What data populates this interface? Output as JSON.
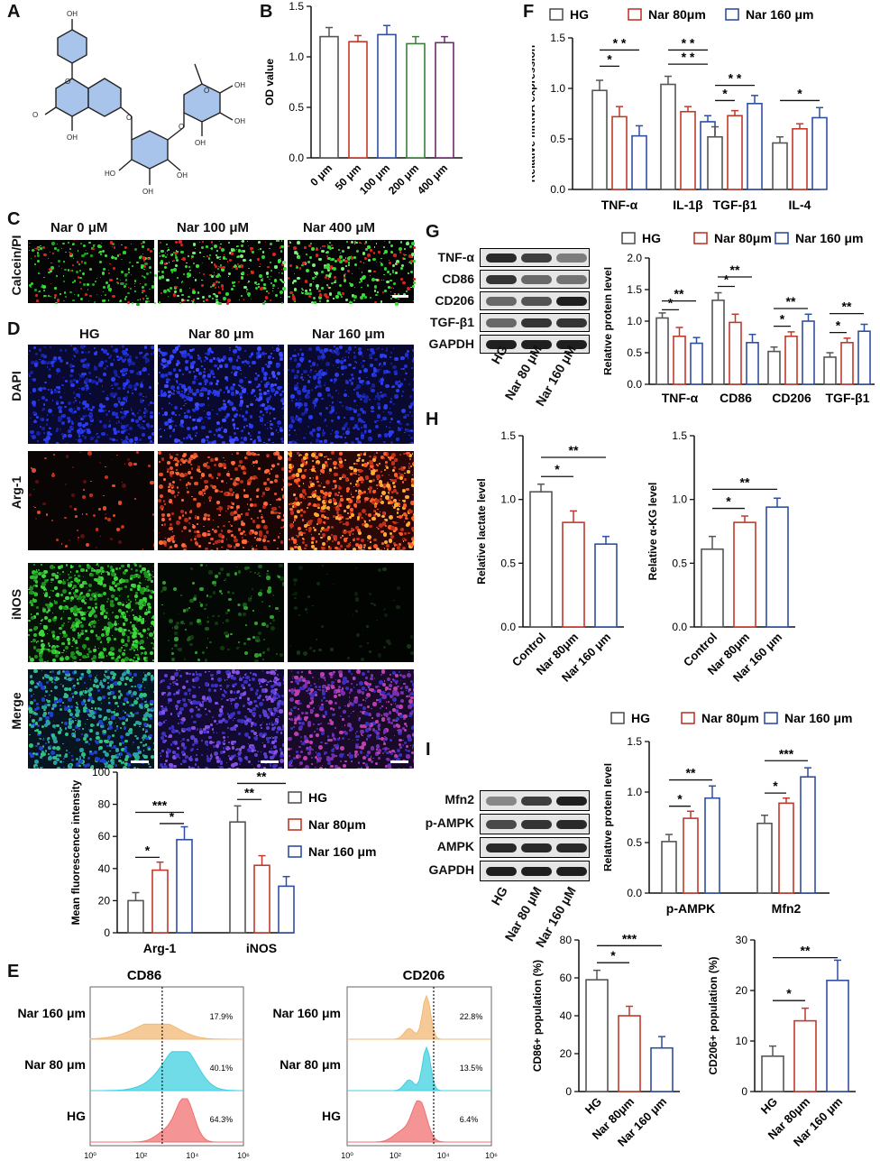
{
  "panels": {
    "A": "A",
    "B": "B",
    "C": "C",
    "D": "D",
    "E": "E",
    "F": "F",
    "G": "G",
    "H": "H",
    "I": "I"
  },
  "colors": {
    "hg": "#555555",
    "nar80": "#c0392b",
    "nar160": "#2e4fa0",
    "bar_fill": "#ffffff"
  },
  "panelB": {
    "ylabel": "OD value",
    "categories": [
      "0 μm",
      "50 μm",
      "100 μm",
      "200 μm",
      "400 μm"
    ],
    "yticks": [
      "0.0",
      "0.5",
      "1.0",
      "1.5"
    ]
  },
  "panelC": {
    "row_label": "Calcein/PI",
    "columns": [
      "Nar 0 μM",
      "Nar 100 μM",
      "Nar 400 μM"
    ]
  },
  "panelD": {
    "columns": [
      "HG",
      "Nar 80 μm",
      "Nar 160 μm"
    ],
    "rows": [
      "DAPI",
      "Arg-1",
      "iNOS",
      "Merge"
    ],
    "chart_ylabel": "Mean fluorescence intensity",
    "legend": [
      "HG",
      "Nar 80μm",
      "Nar 160 μm"
    ],
    "yticks": [
      "0",
      "20",
      "40",
      "60",
      "80",
      "100"
    ],
    "groups": [
      "Arg-1",
      "iNOS"
    ],
    "sig": [
      "*",
      "***",
      "*",
      "**",
      "**"
    ]
  },
  "panelE": {
    "cd86_title": "CD86",
    "cd206_title": "CD206",
    "rows": [
      "Nar 160 μm",
      "Nar 80 μm",
      "HG"
    ],
    "cd86_pct": [
      "17.9%",
      "40.1%",
      "64.3%"
    ],
    "cd206_pct": [
      "22.8%",
      "13.5%",
      "6.4%"
    ],
    "xticks": [
      "10⁰",
      "10²",
      "10⁴",
      "10⁶"
    ]
  },
  "panelF": {
    "ylabel": "Relative mRNA expression",
    "legend": [
      "HG",
      "Nar 80μm",
      "Nar 160 μm"
    ],
    "groups": [
      "TNF-α",
      "IL-1β",
      "TGF-β1",
      "IL-4"
    ],
    "yticks": [
      "0.0",
      "0.5",
      "1.0",
      "1.5"
    ],
    "sig": [
      "*",
      "* *",
      "* *",
      "* *",
      "*",
      "* *",
      "*"
    ]
  },
  "panelG": {
    "blots": [
      "TNF-α",
      "CD86",
      "CD206",
      "TGF-β1",
      "GAPDH"
    ],
    "lanes": [
      "HG",
      "Nar 80 μM",
      "Nar 160 μM"
    ],
    "ylabel": "Relative protein level",
    "legend": [
      "HG",
      "Nar 80μm",
      "Nar 160 μm"
    ],
    "groups": [
      "TNF-α",
      "CD86",
      "CD206",
      "TGF-β1"
    ],
    "yticks": [
      "0.0",
      "0.5",
      "1.0",
      "1.5",
      "2.0"
    ],
    "sig": [
      "*",
      "**",
      "*",
      "**",
      "*",
      "**",
      "*",
      "**"
    ]
  },
  "panelH": {
    "left_ylabel": "Relative lactate level",
    "right_ylabel": "Relative α-KG level",
    "categories": [
      "Control",
      "Nar 80μm",
      "Nar 160 μm"
    ],
    "yticks": [
      "0.0",
      "0.5",
      "1.0",
      "1.5"
    ],
    "sig": [
      "*",
      "**",
      "*",
      "**"
    ]
  },
  "panelI": {
    "blots": [
      "Mfn2",
      "p-AMPK",
      "AMPK",
      "GAPDH"
    ],
    "lanes": [
      "HG",
      "Nar 80 μM",
      "Nar 160 μM"
    ],
    "ylabel": "Relative protein level",
    "legend": [
      "HG",
      "Nar 80μm",
      "Nar 160 μm"
    ],
    "groups": [
      "p-AMPK",
      "Mfn2"
    ],
    "yticks": [
      "0.0",
      "0.5",
      "1.0",
      "1.5"
    ],
    "sig": [
      "*",
      "**",
      "*",
      "***"
    ]
  },
  "panelBottom": {
    "left_ylabel": "CD86+ population (%)",
    "right_ylabel": "CD206+ population (%)",
    "categories": [
      "HG",
      "Nar 80μm",
      "Nar 160 μm"
    ],
    "left_yticks": [
      "0",
      "20",
      "40",
      "60",
      "80"
    ],
    "right_yticks": [
      "0",
      "10",
      "20",
      "30"
    ],
    "sig_left": [
      "*",
      "***"
    ],
    "sig_right": [
      "*",
      "**"
    ]
  },
  "chart_data": [
    {
      "type": "bar",
      "id": "B",
      "categories": [
        "0 μm",
        "50 μm",
        "100 μm",
        "200 μm",
        "400 μm"
      ],
      "values": [
        1.2,
        1.15,
        1.22,
        1.13,
        1.14
      ],
      "errors": [
        0.09,
        0.06,
        0.09,
        0.07,
        0.06
      ],
      "ylabel": "OD value",
      "ylim": [
        0,
        1.5
      ],
      "colors": [
        "#555555",
        "#c0392b",
        "#2e4fa0",
        "#3a7d3a",
        "#6b2c6b"
      ]
    },
    {
      "type": "bar",
      "id": "D",
      "categories": [
        "Arg-1",
        "iNOS"
      ],
      "series": [
        {
          "name": "HG",
          "values": [
            20,
            69
          ],
          "errors": [
            5,
            10
          ]
        },
        {
          "name": "Nar 80μm",
          "values": [
            39,
            42
          ],
          "errors": [
            5,
            6
          ]
        },
        {
          "name": "Nar 160 μm",
          "values": [
            58,
            29
          ],
          "errors": [
            8,
            6
          ]
        }
      ],
      "ylabel": "Mean fluorescence intensity",
      "ylim": [
        0,
        100
      ]
    },
    {
      "type": "bar",
      "id": "F",
      "categories": [
        "TNF-α",
        "IL-1β",
        "TGF-β1",
        "IL-4"
      ],
      "series": [
        {
          "name": "HG",
          "values": [
            0.98,
            1.04,
            0.52,
            0.46
          ],
          "errors": [
            0.1,
            0.08,
            0.1,
            0.06
          ]
        },
        {
          "name": "Nar 80μm",
          "values": [
            0.72,
            0.77,
            0.73,
            0.6
          ],
          "errors": [
            0.1,
            0.05,
            0.05,
            0.05
          ]
        },
        {
          "name": "Nar 160 μm",
          "values": [
            0.53,
            0.67,
            0.85,
            0.71
          ],
          "errors": [
            0.1,
            0.06,
            0.08,
            0.1
          ]
        }
      ],
      "ylabel": "Relative mRNA expression",
      "ylim": [
        0,
        1.5
      ]
    },
    {
      "type": "bar",
      "id": "G",
      "categories": [
        "TNF-α",
        "CD86",
        "CD206",
        "TGF-β1"
      ],
      "series": [
        {
          "name": "HG",
          "values": [
            1.05,
            1.33,
            0.52,
            0.43
          ],
          "errors": [
            0.08,
            0.12,
            0.07,
            0.07
          ]
        },
        {
          "name": "Nar 80μm",
          "values": [
            0.76,
            0.98,
            0.76,
            0.66
          ],
          "errors": [
            0.14,
            0.13,
            0.07,
            0.07
          ]
        },
        {
          "name": "Nar 160 μm",
          "values": [
            0.65,
            0.66,
            1.0,
            0.84
          ],
          "errors": [
            0.09,
            0.13,
            0.11,
            0.11
          ]
        }
      ],
      "ylabel": "Relative protein level",
      "ylim": [
        0,
        2.0
      ]
    },
    {
      "type": "bar",
      "id": "H-left",
      "categories": [
        "Control",
        "Nar 80μm",
        "Nar 160 μm"
      ],
      "values": [
        1.06,
        0.82,
        0.65
      ],
      "errors": [
        0.06,
        0.09,
        0.06
      ],
      "ylabel": "Relative lactate level",
      "ylim": [
        0,
        1.5
      ]
    },
    {
      "type": "bar",
      "id": "H-right",
      "categories": [
        "Control",
        "Nar 80μm",
        "Nar 160 μm"
      ],
      "values": [
        0.61,
        0.82,
        0.94
      ],
      "errors": [
        0.1,
        0.05,
        0.07
      ],
      "ylabel": "Relative α-KG level",
      "ylim": [
        0,
        1.5
      ]
    },
    {
      "type": "bar",
      "id": "I",
      "categories": [
        "p-AMPK",
        "Mfn2"
      ],
      "series": [
        {
          "name": "HG",
          "values": [
            0.51,
            0.69
          ],
          "errors": [
            0.07,
            0.08
          ]
        },
        {
          "name": "Nar 80μm",
          "values": [
            0.74,
            0.89
          ],
          "errors": [
            0.07,
            0.05
          ]
        },
        {
          "name": "Nar 160 μm",
          "values": [
            0.94,
            1.15
          ],
          "errors": [
            0.12,
            0.09
          ]
        }
      ],
      "ylabel": "Relative protein level",
      "ylim": [
        0,
        1.5
      ]
    },
    {
      "type": "bar",
      "id": "CD86pop",
      "categories": [
        "HG",
        "Nar 80μm",
        "Nar 160 μm"
      ],
      "values": [
        59,
        40,
        23
      ],
      "errors": [
        5,
        5,
        6
      ],
      "ylabel": "CD86+ population (%)",
      "ylim": [
        0,
        80
      ]
    },
    {
      "type": "bar",
      "id": "CD206pop",
      "categories": [
        "HG",
        "Nar 80μm",
        "Nar 160 μm"
      ],
      "values": [
        7,
        14,
        22
      ],
      "errors": [
        2,
        2.5,
        4
      ],
      "ylabel": "CD206+ population (%)",
      "ylim": [
        0,
        30
      ]
    }
  ]
}
